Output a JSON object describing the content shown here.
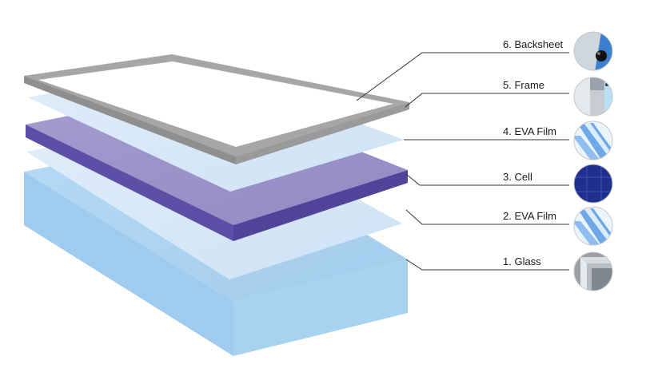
{
  "labels": [
    {
      "id": "backsheet",
      "text": "6. Backsheet"
    },
    {
      "id": "frame",
      "text": "5. Frame"
    },
    {
      "id": "eva-film-top",
      "text": "4. EVA Film"
    },
    {
      "id": "cell",
      "text": "3. Cell"
    },
    {
      "id": "eva-film-bottom",
      "text": "2. EVA Film"
    },
    {
      "id": "glass",
      "text": "1. Glass"
    }
  ],
  "colors": {
    "glass": "#a7d0f0",
    "eva": "#d4e6f7",
    "cell_top": "#9d95c9",
    "cell_edge": "#5a4ea3",
    "frame": "#a3a3a3",
    "frame_inner": "#ffffff",
    "leader": "#333333"
  }
}
